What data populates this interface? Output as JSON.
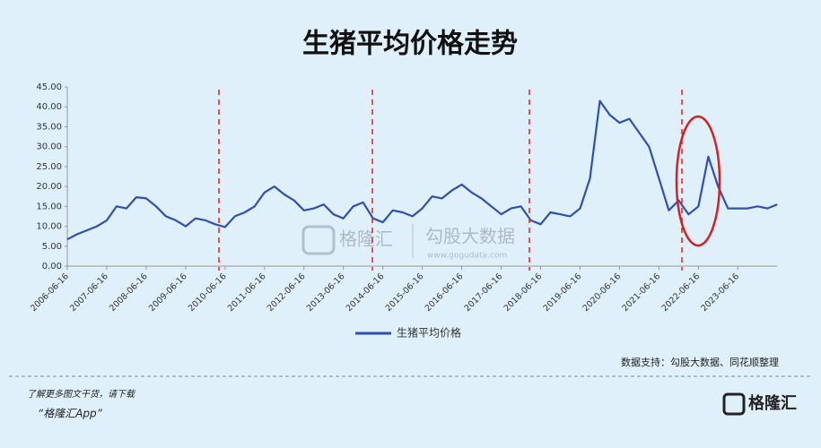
{
  "chart_data": {
    "type": "line",
    "title": "生猪平均价格走势",
    "categories": [
      "2006-06-16",
      null,
      null,
      null,
      "2007-06-16",
      null,
      null,
      null,
      "2008-06-16",
      null,
      null,
      null,
      "2009-06-16",
      null,
      null,
      null,
      "2010-06-16",
      null,
      null,
      null,
      "2011-06-16",
      null,
      null,
      null,
      "2012-06-16",
      null,
      null,
      null,
      "2013-06-16",
      null,
      null,
      null,
      "2014-06-16",
      null,
      null,
      null,
      "2015-06-16",
      null,
      null,
      null,
      "2016-06-16",
      null,
      null,
      null,
      "2017-06-16",
      null,
      null,
      null,
      "2018-06-16",
      null,
      null,
      null,
      "2019-06-16",
      null,
      null,
      null,
      "2020-06-16",
      null,
      null,
      null,
      "2021-06-16",
      null,
      null,
      null,
      "2022-06-16",
      null,
      null,
      null,
      "2023-06-16",
      null,
      null,
      null,
      null
    ],
    "series": [
      {
        "name": "生猪平均价格",
        "color": "#2e4fb5",
        "values": [
          6.7,
          8.0,
          9.0,
          10.0,
          11.5,
          15.0,
          14.5,
          17.3,
          17.0,
          15.0,
          12.5,
          11.5,
          10.0,
          12.0,
          11.5,
          10.5,
          9.8,
          12.5,
          13.5,
          15.0,
          18.5,
          20.0,
          18.0,
          16.5,
          14.0,
          14.5,
          15.5,
          13.0,
          12.0,
          15.0,
          16.0,
          12.0,
          11.0,
          14.0,
          13.5,
          12.5,
          14.5,
          17.5,
          17.0,
          19.0,
          20.5,
          18.5,
          17.0,
          15.0,
          13.0,
          14.5,
          15.0,
          11.5,
          10.5,
          13.5,
          13.0,
          12.5,
          14.5,
          22.0,
          41.5,
          38.0,
          36.0,
          37.0,
          33.5,
          30.0,
          22.0,
          14.0,
          16.5,
          13.0,
          15.0,
          27.5,
          20.0,
          14.5,
          14.5,
          14.5,
          15.0,
          14.5,
          15.5
        ]
      }
    ],
    "ylim": [
      0,
      45
    ],
    "yticks": [
      {
        "value": 0,
        "label": "0.00"
      },
      {
        "value": 5,
        "label": "5.00"
      },
      {
        "value": 10,
        "label": "10.00"
      },
      {
        "value": 15,
        "label": "15.00"
      },
      {
        "value": 20,
        "label": "20.00"
      },
      {
        "value": 25,
        "label": "25.00"
      },
      {
        "value": 30,
        "label": "30.00"
      },
      {
        "value": 35,
        "label": "35.00"
      },
      {
        "value": 40,
        "label": "40.00"
      },
      {
        "value": 45,
        "label": "45.00"
      }
    ],
    "source": "数据支持：勾股大数据、同花顺整理"
  },
  "watermark": {
    "brand": "格隆汇",
    "partner": "勾股大数据",
    "url": "www.gogudata.com"
  },
  "footer": {
    "line1": "了解更多图文干货，请下载",
    "line2": "“格隆汇App”",
    "logo": "格隆汇"
  }
}
